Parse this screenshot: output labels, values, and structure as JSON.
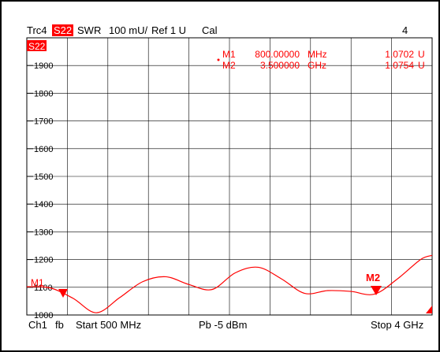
{
  "header": {
    "trace": "Trc4",
    "param": "S22",
    "format": "SWR",
    "scale": "100 mU/",
    "ref": "Ref 1 U",
    "cal": "Cal",
    "trace_num": "4"
  },
  "plot": {
    "param_label": "S22",
    "y_ticks": [
      "1900",
      "1800",
      "1700",
      "1600",
      "1500",
      "1400",
      "1300",
      "1200",
      "1100",
      "1000"
    ],
    "trace_color": "#ff0000"
  },
  "markers_table": [
    {
      "name": "M1",
      "freq": "800.00000",
      "unit": "MHz",
      "value": "1.0702",
      "vunit": "U"
    },
    {
      "name": "M2",
      "freq": "3.500000",
      "unit": "GHz",
      "value": "1.0754",
      "vunit": "U"
    }
  ],
  "markers": {
    "m1_label": "M1",
    "m2_label": "M2"
  },
  "footer": {
    "ch": "Ch1",
    "fb": "fb",
    "start": "Start 500 MHz",
    "power": "Pb  -5 dBm",
    "stop": "Stop 4 GHz"
  },
  "chart_data": {
    "type": "line",
    "x": [
      500,
      700,
      900,
      1100,
      1300,
      1500,
      1700,
      1900,
      2100,
      2300,
      2500,
      2700,
      2900,
      3100,
      3300,
      3500,
      3700,
      3900,
      4000
    ],
    "y": [
      1102,
      1098,
      1060,
      1008,
      1062,
      1120,
      1138,
      1110,
      1092,
      1152,
      1172,
      1130,
      1078,
      1088,
      1085,
      1075,
      1130,
      1200,
      1215
    ],
    "ylim": [
      1000,
      2000
    ],
    "xlim": [
      500,
      4000
    ],
    "grid": true
  }
}
